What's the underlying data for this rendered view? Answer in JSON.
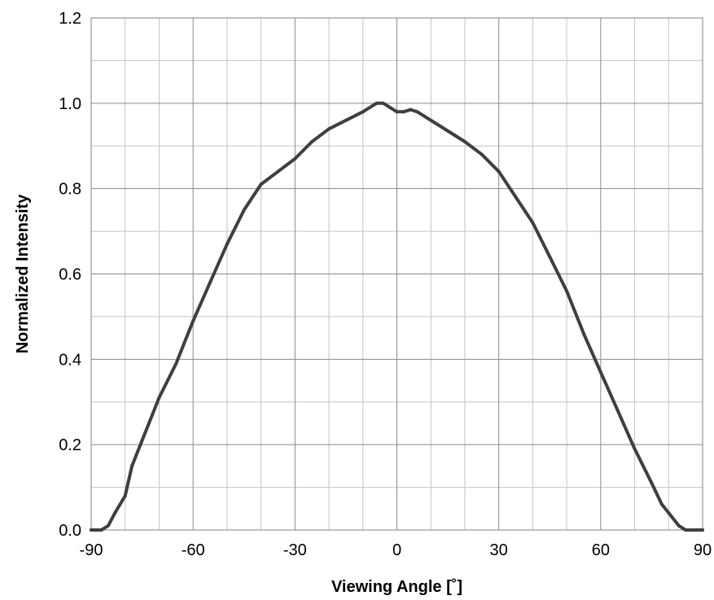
{
  "chart_data": {
    "type": "line",
    "title": "",
    "xlabel": "Viewing Angle [˚]",
    "ylabel": "Normalized Intensity",
    "xlim": [
      -90,
      90
    ],
    "ylim": [
      0,
      1.2
    ],
    "x_ticks": [
      -90,
      -60,
      -30,
      0,
      30,
      60,
      90
    ],
    "x_tick_labels": [
      "-90",
      "-60",
      "-30",
      "0",
      "30",
      "60",
      "90"
    ],
    "y_ticks": [
      0,
      0.2,
      0.4,
      0.6,
      0.8,
      1.0,
      1.2
    ],
    "y_tick_labels": [
      "0.0",
      "0.2",
      "0.4",
      "0.6",
      "0.8",
      "1.0",
      "1.2"
    ],
    "x_minor_step": 10,
    "y_minor_step": 0.1,
    "grid": true,
    "legend": "none",
    "line_color": "#3f3f3f",
    "series": [
      {
        "x": [
          -90,
          -87,
          -85,
          -83,
          -80,
          -78,
          -75,
          -72,
          -70,
          -65,
          -62,
          -60,
          -55,
          -50,
          -45,
          -40,
          -35,
          -30,
          -25,
          -20,
          -15,
          -10,
          -6,
          -4,
          -2,
          0,
          2,
          4,
          6,
          8,
          12,
          16,
          20,
          25,
          30,
          35,
          40,
          45,
          50,
          55,
          60,
          65,
          70,
          75,
          78,
          80,
          83,
          85,
          87,
          90
        ],
        "y": [
          0.0,
          0.0,
          0.01,
          0.04,
          0.08,
          0.15,
          0.21,
          0.27,
          0.31,
          0.39,
          0.45,
          0.49,
          0.58,
          0.67,
          0.75,
          0.81,
          0.84,
          0.87,
          0.91,
          0.94,
          0.96,
          0.98,
          1.0,
          1.0,
          0.99,
          0.98,
          0.98,
          0.985,
          0.98,
          0.97,
          0.95,
          0.93,
          0.91,
          0.88,
          0.84,
          0.78,
          0.72,
          0.64,
          0.56,
          0.46,
          0.37,
          0.28,
          0.19,
          0.11,
          0.06,
          0.04,
          0.01,
          0.0,
          0.0,
          0.0
        ]
      }
    ]
  }
}
